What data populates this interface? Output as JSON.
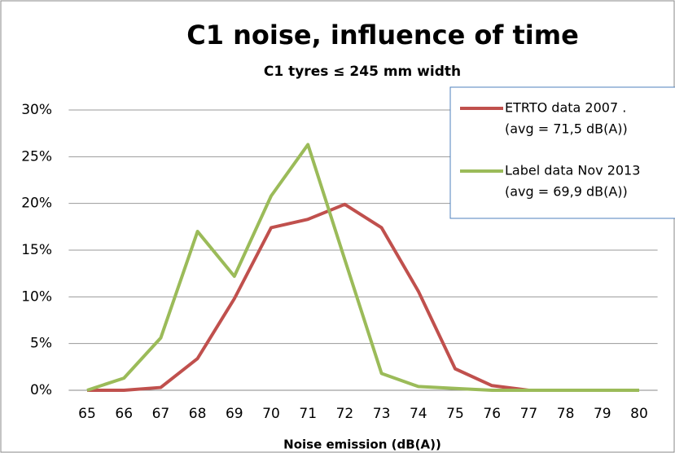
{
  "chart_data": {
    "type": "line",
    "title": "C1 noise, influence of time",
    "subtitle": "C1 tyres ≤ 245 mm width",
    "x_label": "Noise emission (dB(A))",
    "categories": [
      65,
      66,
      67,
      68,
      69,
      70,
      71,
      72,
      73,
      74,
      75,
      76,
      77,
      78,
      79,
      80
    ],
    "series": [
      {
        "name": "ETRTO data 2007   .",
        "note": "(avg = 71,5 dB(A))",
        "color": "#c0504d",
        "values": [
          0,
          0,
          0.3,
          3.4,
          9.8,
          17.4,
          18.3,
          19.9,
          17.4,
          10.6,
          2.3,
          0.5,
          0,
          0,
          0,
          0
        ]
      },
      {
        "name": "Label data Nov 2013",
        "note": "(avg = 69,9 dB(A))",
        "color": "#9bbb59",
        "values": [
          0,
          1.3,
          5.6,
          17.0,
          12.2,
          20.8,
          26.3,
          14.0,
          1.8,
          0.4,
          0.2,
          0,
          0,
          0,
          0,
          0
        ]
      }
    ],
    "ylim": [
      0,
      30
    ],
    "yticks": [
      {
        "value": 0,
        "label": "0%"
      },
      {
        "value": 5,
        "label": "5%"
      },
      {
        "value": 10,
        "label": "10%"
      },
      {
        "value": 15,
        "label": "15%"
      },
      {
        "value": 20,
        "label": "20%"
      },
      {
        "value": 25,
        "label": "25%"
      },
      {
        "value": 30,
        "label": "30%"
      }
    ],
    "grid": true,
    "legend": "top-right"
  }
}
